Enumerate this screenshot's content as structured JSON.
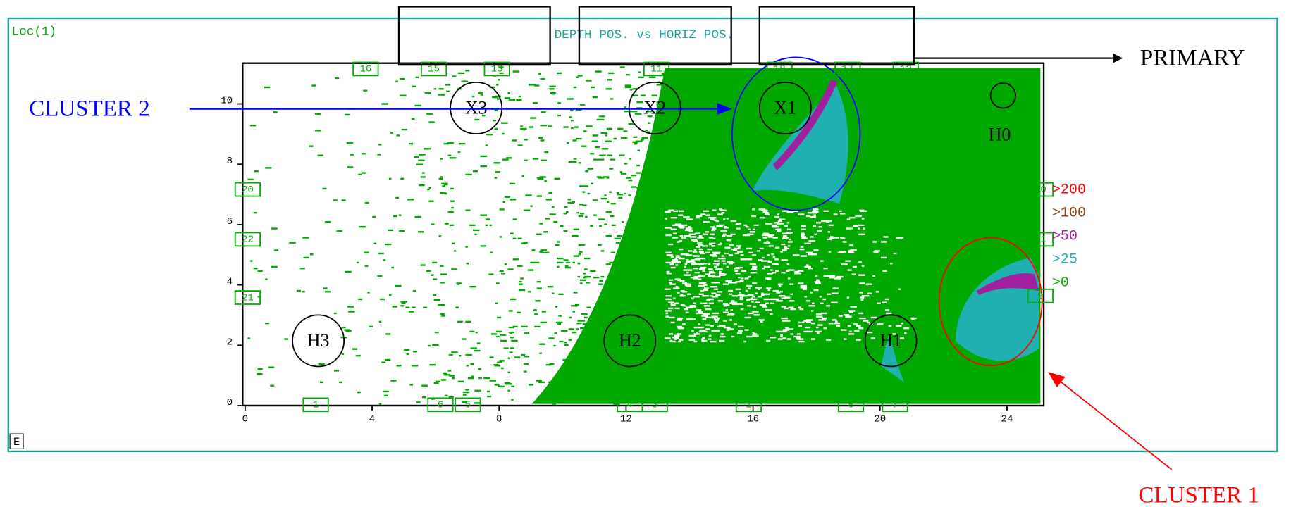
{
  "panel": {
    "label": "Loc(1)",
    "title": "DEPTH POS. vs HORIZ POS.",
    "corner_mark": "E"
  },
  "plot": {
    "xticks": [
      0,
      4,
      8,
      12,
      16,
      20,
      24
    ],
    "yticks": [
      0,
      2,
      4,
      6,
      8,
      10
    ]
  },
  "sensors": [
    "16",
    "15",
    "13",
    "11",
    "18",
    "17",
    "12",
    "20",
    "22",
    "21",
    "10",
    "11",
    "9",
    "1",
    "6",
    "5",
    "4",
    "3",
    "1",
    "8",
    "7"
  ],
  "sources": [
    "X3",
    "X2",
    "X1",
    "H0",
    "H3",
    "H2",
    "H1"
  ],
  "legend": [
    ">200",
    ">100",
    ">50",
    ">25",
    ">0"
  ],
  "annotations": {
    "primary": "PRIMARY",
    "cluster_2": "CLUSTER 2",
    "cluster_1": "CLUSTER 1"
  }
}
